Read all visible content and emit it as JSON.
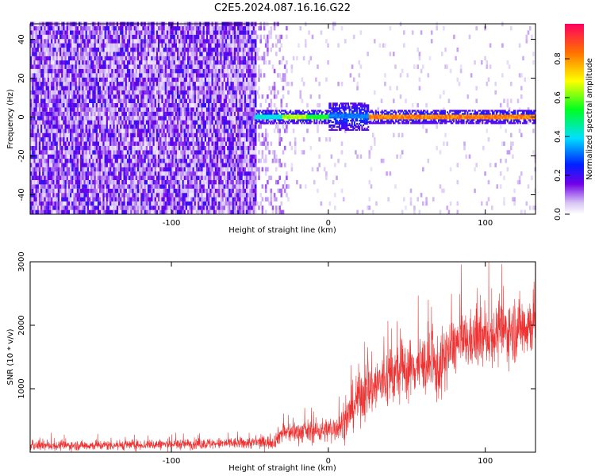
{
  "title": "C2E5.2024.087.16.16.G22",
  "chart_data": [
    {
      "type": "heatmap",
      "xlabel": "Height of straight line (km)",
      "ylabel": "Frequency (Hz)",
      "xlim": [
        -190,
        132
      ],
      "ylim": [
        -50,
        48
      ],
      "x_ticks": [
        -100,
        0,
        100
      ],
      "y_ticks": [
        -40,
        -20,
        0,
        20,
        40
      ],
      "colorbar": {
        "label": "Normalized spectral amplitude",
        "range": [
          0,
          0.98
        ],
        "ticks": [
          0.0,
          0.2,
          0.4,
          0.6,
          0.8
        ],
        "colors": [
          "#ffffff",
          "#d8c4f4",
          "#7000e8",
          "#0020ff",
          "#00e0ff",
          "#00ff20",
          "#ffff00",
          "#ff7000",
          "#ff0040"
        ]
      },
      "signal_band": {
        "x_start": -47,
        "x_end": 132,
        "center_freq_hz": 0,
        "note_regions": [
          {
            "x": [
              -47,
              -30
            ],
            "amp": 0.45
          },
          {
            "x": [
              -30,
              -15
            ],
            "amp": 0.7
          },
          {
            "x": [
              -15,
              0
            ],
            "amp": 0.6
          },
          {
            "x": [
              0,
              25
            ],
            "amp": 0.35
          },
          {
            "x": [
              25,
              132
            ],
            "amp": 0.9
          }
        ]
      },
      "noise_region": {
        "x_start": -190,
        "x_end": -47,
        "amp": 0.2
      }
    },
    {
      "type": "line",
      "xlabel": "Height of straight line (km)",
      "ylabel": "SNR (10 * v/v)",
      "xlim": [
        -190,
        132
      ],
      "ylim": [
        0,
        3000
      ],
      "x_ticks": [
        -100,
        0,
        100
      ],
      "y_ticks": [
        1000,
        2000,
        3000
      ],
      "series": [
        {
          "color": "#ee3333",
          "envelope": [
            {
              "x": -190,
              "mean": 100,
              "spread": 80
            },
            {
              "x": -140,
              "mean": 110,
              "spread": 90
            },
            {
              "x": -60,
              "mean": 140,
              "spread": 100
            },
            {
              "x": -35,
              "mean": 160,
              "spread": 120
            },
            {
              "x": -30,
              "mean": 300,
              "spread": 180
            },
            {
              "x": 0,
              "mean": 350,
              "spread": 220
            },
            {
              "x": 10,
              "mean": 450,
              "spread": 300
            },
            {
              "x": 20,
              "mean": 900,
              "spread": 500
            },
            {
              "x": 40,
              "mean": 1200,
              "spread": 550
            },
            {
              "x": 60,
              "mean": 1400,
              "spread": 500
            },
            {
              "x": 70,
              "mean": 1300,
              "spread": 600
            },
            {
              "x": 80,
              "mean": 1700,
              "spread": 500
            },
            {
              "x": 100,
              "mean": 1800,
              "spread": 500
            },
            {
              "x": 132,
              "mean": 2050,
              "spread": 600
            }
          ]
        }
      ]
    }
  ]
}
